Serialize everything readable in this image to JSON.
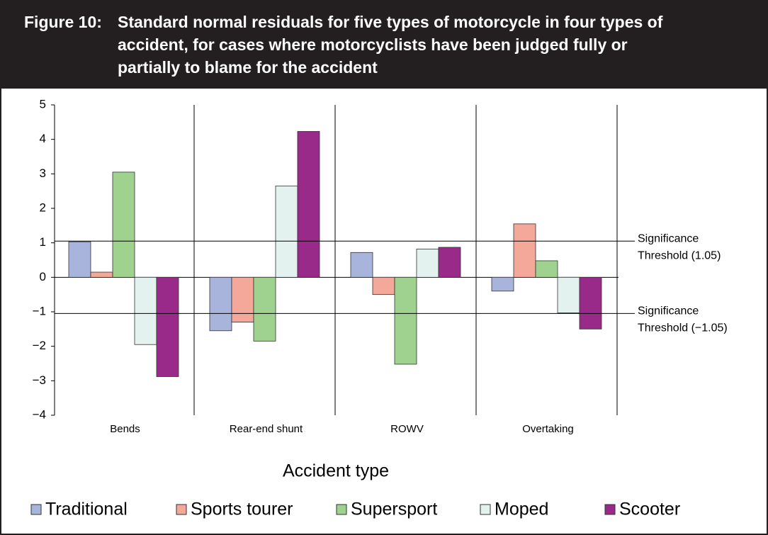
{
  "chart_data": {
    "type": "bar",
    "figure_label": "Figure 10:",
    "title_lines": [
      "Standard normal residuals for five types of motorcycle in four types of",
      "accident, for cases where motorcyclists have been judged fully or",
      "partially to blame for the accident"
    ],
    "xlabel": "Accident type",
    "categories": [
      "Bends",
      "Rear-end shunt",
      "ROWV",
      "Overtaking"
    ],
    "series": [
      {
        "name": "Traditional",
        "color": "#a9b4dc",
        "values": [
          1.03,
          -1.55,
          0.72,
          -0.4
        ]
      },
      {
        "name": "Sports tourer",
        "color": "#f4a89a",
        "values": [
          0.15,
          -1.3,
          -0.5,
          1.55
        ]
      },
      {
        "name": "Supersport",
        "color": "#9fd18f",
        "values": [
          3.05,
          -1.85,
          -2.52,
          0.48
        ]
      },
      {
        "name": "Moped",
        "color": "#e3f2ef",
        "values": [
          -1.95,
          2.65,
          0.82,
          -1.03
        ]
      },
      {
        "name": "Scooter",
        "color": "#9a2a8a",
        "values": [
          -2.88,
          4.23,
          0.87,
          -1.5
        ]
      }
    ],
    "ylim": [
      -4,
      5
    ],
    "yticks": [
      {
        "value": -4,
        "label": "−4"
      },
      {
        "value": -3,
        "label": "−3"
      },
      {
        "value": -2,
        "label": "−2"
      },
      {
        "value": -1,
        "label": "−1"
      },
      0,
      1,
      2,
      3,
      4,
      5
    ],
    "thresholds": [
      {
        "value": 1.05,
        "lines": [
          "Significance",
          "Threshold (1.05)"
        ]
      },
      {
        "value": -1.05,
        "lines": [
          "Significance",
          "Threshold (−1.05)"
        ]
      }
    ],
    "legend": "bottom"
  }
}
